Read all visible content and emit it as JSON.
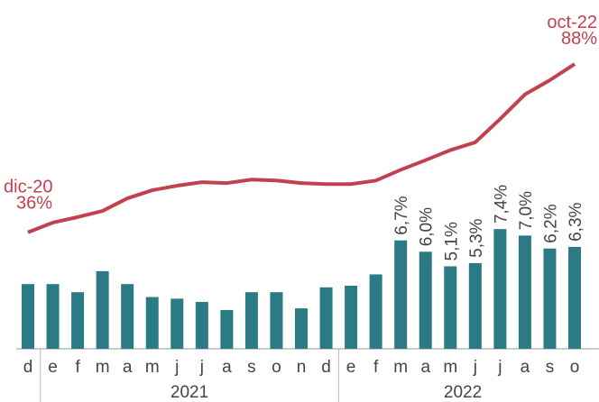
{
  "chart_data": {
    "type": "bar",
    "categories": [
      "d",
      "e",
      "f",
      "m",
      "a",
      "m",
      "j",
      "j",
      "a",
      "s",
      "o",
      "n",
      "d",
      "e",
      "f",
      "m",
      "a",
      "m",
      "j",
      "j",
      "a",
      "s",
      "o"
    ],
    "year_labels": [
      "2021",
      "2022"
    ],
    "ylim": [
      0,
      21
    ],
    "y2lim": [
      0,
      105
    ],
    "series": [
      {
        "type": "bar",
        "color": "#2b7b84",
        "values": [
          4.0,
          4.0,
          3.5,
          4.8,
          4.0,
          3.2,
          3.1,
          2.9,
          2.4,
          3.5,
          3.5,
          2.5,
          3.8,
          3.9,
          4.6,
          6.7,
          6.0,
          5.1,
          5.3,
          7.4,
          7.0,
          6.2,
          6.3
        ],
        "value_labels": [
          null,
          null,
          null,
          null,
          null,
          null,
          null,
          null,
          null,
          null,
          null,
          null,
          null,
          null,
          null,
          "6,7%",
          "6,0%",
          "5,1%",
          "5,3%",
          "7,4%",
          "7,0%",
          "6,2%",
          "6,3%"
        ]
      },
      {
        "type": "line",
        "axis": "y2",
        "color": "#c2414f",
        "values": [
          36,
          39,
          40.7,
          42.6,
          46.5,
          49,
          50.4,
          51.5,
          51.2,
          52.3,
          52,
          51.2,
          50.9,
          50.9,
          52,
          55.3,
          58.3,
          61.4,
          63.8,
          71,
          78.6,
          83,
          88
        ],
        "value_labels": [
          "36%",
          null,
          null,
          null,
          null,
          null,
          null,
          null,
          null,
          null,
          null,
          null,
          null,
          null,
          null,
          null,
          null,
          null,
          null,
          null,
          null,
          null,
          "88%"
        ],
        "point_labels": [
          "dic-20",
          null,
          null,
          null,
          null,
          null,
          null,
          null,
          null,
          null,
          null,
          null,
          null,
          null,
          null,
          null,
          null,
          null,
          null,
          null,
          null,
          null,
          "oct-22"
        ]
      }
    ]
  }
}
